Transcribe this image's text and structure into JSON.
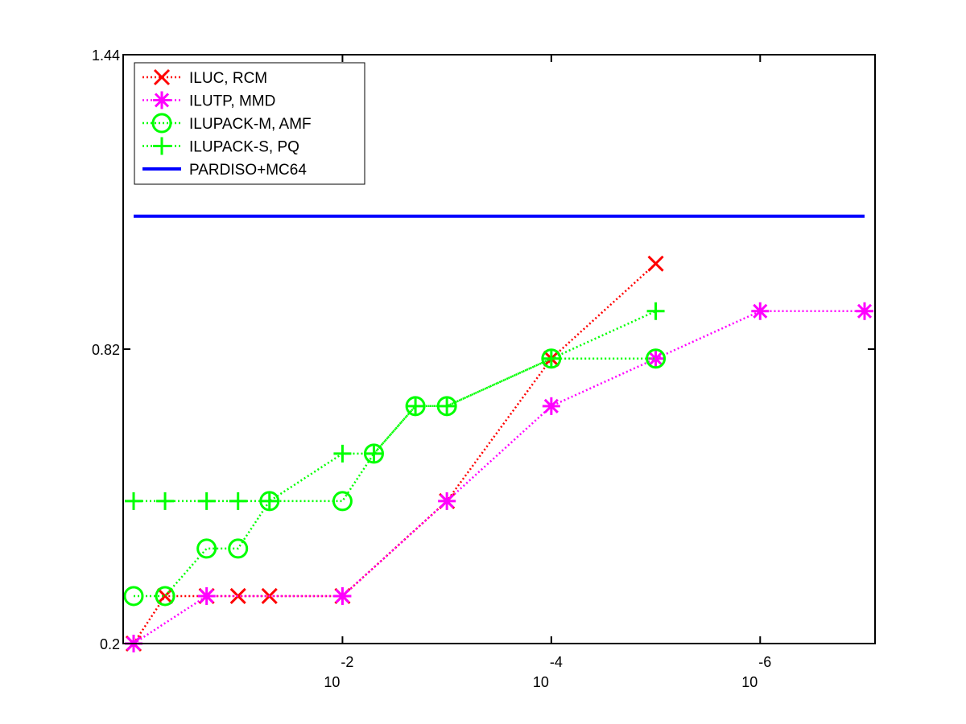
{
  "chart_data": {
    "type": "line",
    "title": "",
    "xlabel": "",
    "ylabel": "",
    "x_scale": "log-decreasing",
    "xlim": [
      1,
      1e-07
    ],
    "ylim": [
      0.2,
      1.44
    ],
    "x_ticks": [
      {
        "value": 0.01,
        "base": "10",
        "exp": "-2"
      },
      {
        "value": 0.0001,
        "base": "10",
        "exp": "-4"
      },
      {
        "value": 1e-06,
        "base": "10",
        "exp": "-6"
      }
    ],
    "y_ticks": [
      {
        "value": 0.2,
        "label": "0.2"
      },
      {
        "value": 0.82,
        "label": "0.82"
      },
      {
        "value": 1.44,
        "label": "1.44"
      }
    ],
    "grid": false,
    "legend_position": "top-left",
    "series": [
      {
        "name": "ILUC, RCM",
        "color": "#ff0000",
        "marker": "x",
        "line": "dotted",
        "x": [
          1,
          0.5,
          0.2,
          0.1,
          0.05,
          0.01,
          0.001,
          0.0001,
          1e-05
        ],
        "y": [
          0.2,
          0.3,
          0.3,
          0.3,
          0.3,
          0.3,
          0.5,
          0.8,
          1.0
        ]
      },
      {
        "name": "ILUTP, MMD",
        "color": "#ff00ff",
        "marker": "asterisk",
        "line": "dotted",
        "x": [
          1,
          0.2,
          0.01,
          0.001,
          0.0001,
          1e-05,
          1e-06,
          1e-07
        ],
        "y": [
          0.2,
          0.3,
          0.3,
          0.5,
          0.7,
          0.8,
          0.9,
          0.9
        ]
      },
      {
        "name": "ILUPACK-M, AMF",
        "color": "#00ff00",
        "marker": "circle",
        "line": "dotted",
        "x": [
          1,
          0.5,
          0.2,
          0.1,
          0.05,
          0.01,
          0.005,
          0.002,
          0.001,
          0.0001,
          1e-05
        ],
        "y": [
          0.3,
          0.3,
          0.4,
          0.4,
          0.5,
          0.5,
          0.6,
          0.7,
          0.7,
          0.8,
          0.8
        ]
      },
      {
        "name": "ILUPACK-S, PQ",
        "color": "#00ff00",
        "marker": "plus",
        "line": "dotted",
        "x": [
          1,
          0.5,
          0.2,
          0.1,
          0.05,
          0.01,
          0.005,
          0.002,
          0.001,
          0.0001,
          1e-05
        ],
        "y": [
          0.5,
          0.5,
          0.5,
          0.5,
          0.5,
          0.6,
          0.6,
          0.7,
          0.7,
          0.8,
          0.9
        ]
      },
      {
        "name": "PARDISO+MC64",
        "color": "#0000ff",
        "marker": "none",
        "line": "solid",
        "x": [
          1,
          1e-07
        ],
        "y": [
          1.1,
          1.1
        ]
      }
    ]
  }
}
